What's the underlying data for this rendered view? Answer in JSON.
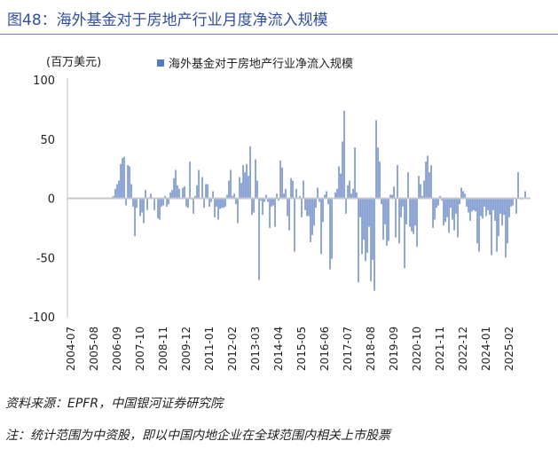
{
  "figure_title": "图48：海外基金对于房地产行业月度净流入规模",
  "source": "资料来源：EPFR，中国银河证券研究院",
  "note": "注：统计范围为中资股，即以中国内地企业在全球范围内相关上市股票",
  "colors": {
    "bar": "#5679c2",
    "title": "#2f4f9e",
    "axis": "#bfbfbf"
  },
  "chart_data": {
    "type": "bar",
    "title": "",
    "ylabel": "(百万美元)",
    "ylim": [
      -100,
      100
    ],
    "yticks": [
      100,
      50,
      0,
      -50,
      -100
    ],
    "grid": false,
    "legend": {
      "placement": "top",
      "entries": [
        "海外基金对于房地产行业净流入规模"
      ]
    },
    "xtick_labels": [
      "2004-07",
      "2005-08",
      "2006-09",
      "2007-10",
      "2008-11",
      "2009-12",
      "2011-01",
      "2012-02",
      "2013-03",
      "2014-04",
      "2015-05",
      "2016-06",
      "2017-07",
      "2018-08",
      "2019-09",
      "2020-10",
      "2021-11",
      "2022-12",
      "2024-01",
      "2025-02"
    ],
    "categories": [
      "2004-07",
      "2004-08",
      "2004-09",
      "2004-10",
      "2004-11",
      "2004-12",
      "2005-01",
      "2005-02",
      "2005-03",
      "2005-04",
      "2005-05",
      "2005-06",
      "2005-07",
      "2005-08",
      "2005-09",
      "2005-10",
      "2005-11",
      "2005-12",
      "2006-01",
      "2006-02",
      "2006-03",
      "2006-04",
      "2006-05",
      "2006-06",
      "2006-07",
      "2006-08",
      "2006-09",
      "2006-10",
      "2006-11",
      "2006-12",
      "2007-01",
      "2007-02",
      "2007-03",
      "2007-04",
      "2007-05",
      "2007-06",
      "2007-07",
      "2007-08",
      "2007-09",
      "2007-10",
      "2007-11",
      "2007-12",
      "2008-01",
      "2008-02",
      "2008-03",
      "2008-04",
      "2008-05",
      "2008-06",
      "2008-07",
      "2008-08",
      "2008-09",
      "2008-10",
      "2008-11",
      "2008-12",
      "2009-01",
      "2009-02",
      "2009-03",
      "2009-04",
      "2009-05",
      "2009-06",
      "2009-07",
      "2009-08",
      "2009-09",
      "2009-10",
      "2009-11",
      "2009-12",
      "2010-01",
      "2010-02",
      "2010-03",
      "2010-04",
      "2010-05",
      "2010-06",
      "2010-07",
      "2010-08",
      "2010-09",
      "2010-10",
      "2010-11",
      "2010-12",
      "2011-01",
      "2011-02",
      "2011-03",
      "2011-04",
      "2011-05",
      "2011-06",
      "2011-07",
      "2011-08",
      "2011-09",
      "2011-10",
      "2011-11",
      "2011-12",
      "2012-01",
      "2012-02",
      "2012-03",
      "2012-04",
      "2012-05",
      "2012-06",
      "2012-07",
      "2012-08",
      "2012-09",
      "2012-10",
      "2012-11",
      "2012-12",
      "2013-01",
      "2013-02",
      "2013-03",
      "2013-04",
      "2013-05",
      "2013-06",
      "2013-07",
      "2013-08",
      "2013-09",
      "2013-10",
      "2013-11",
      "2013-12",
      "2014-01",
      "2014-02",
      "2014-03",
      "2014-04",
      "2014-05",
      "2014-06",
      "2014-07",
      "2014-08",
      "2014-09",
      "2014-10",
      "2014-11",
      "2014-12",
      "2015-01",
      "2015-02",
      "2015-03",
      "2015-04",
      "2015-05",
      "2015-06",
      "2015-07",
      "2015-08",
      "2015-09",
      "2015-10",
      "2015-11",
      "2015-12",
      "2016-01",
      "2016-02",
      "2016-03",
      "2016-04",
      "2016-05",
      "2016-06",
      "2016-07",
      "2016-08",
      "2016-09",
      "2016-10",
      "2016-11",
      "2016-12",
      "2017-01",
      "2017-02",
      "2017-03",
      "2017-04",
      "2017-05",
      "2017-06",
      "2017-07",
      "2017-08",
      "2017-09",
      "2017-10",
      "2017-11",
      "2017-12",
      "2018-01",
      "2018-02",
      "2018-03",
      "2018-04",
      "2018-05",
      "2018-06",
      "2018-07",
      "2018-08",
      "2018-09",
      "2018-10",
      "2018-11",
      "2018-12",
      "2019-01",
      "2019-02",
      "2019-03",
      "2019-04",
      "2019-05",
      "2019-06",
      "2019-07",
      "2019-08",
      "2019-09",
      "2019-10",
      "2019-11",
      "2019-12",
      "2020-01",
      "2020-02",
      "2020-03",
      "2020-04",
      "2020-05",
      "2020-06",
      "2020-07",
      "2020-08",
      "2020-09",
      "2020-10",
      "2020-11",
      "2020-12",
      "2021-01",
      "2021-02",
      "2021-03",
      "2021-04",
      "2021-05",
      "2021-06",
      "2021-07",
      "2021-08",
      "2021-09",
      "2021-10",
      "2021-11",
      "2021-12",
      "2022-01",
      "2022-02",
      "2022-03",
      "2022-04",
      "2022-05",
      "2022-06",
      "2022-07",
      "2022-08",
      "2022-09",
      "2022-10",
      "2022-11",
      "2022-12",
      "2023-01",
      "2023-02",
      "2023-03",
      "2023-04",
      "2023-05",
      "2023-06",
      "2023-07",
      "2023-08",
      "2023-09",
      "2023-10",
      "2023-11",
      "2023-12",
      "2024-01",
      "2024-02",
      "2024-03",
      "2024-04",
      "2024-05",
      "2024-06",
      "2024-07",
      "2024-08",
      "2024-09",
      "2024-10",
      "2024-11",
      "2024-12",
      "2025-01",
      "2025-02",
      "2025-03",
      "2025-04",
      "2025-05",
      "2025-06",
      "2025-07",
      "2025-08",
      "2025-09",
      "2025-10",
      "2025-11"
    ],
    "values": [
      0,
      0,
      0,
      0,
      0,
      0,
      0,
      0,
      0,
      0,
      0,
      0,
      0,
      0,
      0,
      0,
      0,
      0,
      0,
      0,
      0,
      0,
      0,
      1,
      2,
      8,
      12,
      15,
      29,
      34,
      35,
      -6,
      28,
      27,
      12,
      -7,
      -32,
      -8,
      0,
      -15,
      -12,
      -21,
      7,
      -10,
      1,
      4,
      0,
      -10,
      0,
      -17,
      -18,
      -7,
      -6,
      2,
      -7,
      -5,
      5,
      7,
      17,
      24,
      11,
      8,
      0,
      9,
      10,
      -7,
      -8,
      31,
      -1,
      -13,
      2,
      11,
      24,
      0,
      18,
      -8,
      12,
      12,
      -7,
      -3,
      6,
      -16,
      -7,
      -18,
      -9,
      -8,
      -8,
      -7,
      3,
      15,
      24,
      2,
      4,
      -5,
      -21,
      18,
      13,
      28,
      22,
      29,
      19,
      44,
      -14,
      -12,
      33,
      15,
      -69,
      -2,
      -14,
      -3,
      3,
      -3,
      -25,
      -7,
      -6,
      -24,
      4,
      -2,
      32,
      26,
      4,
      8,
      -15,
      -27,
      17,
      15,
      -45,
      8,
      0,
      2,
      -16,
      15,
      -10,
      -15,
      -15,
      -37,
      -31,
      -23,
      -8,
      9,
      -3,
      -47,
      -20,
      3,
      6,
      -5,
      -60,
      -51,
      0,
      5,
      8,
      27,
      21,
      48,
      74,
      -13,
      11,
      15,
      4,
      8,
      43,
      5,
      -71,
      -16,
      -47,
      -35,
      -53,
      -46,
      -24,
      -70,
      -52,
      -78,
      66,
      43,
      31,
      -5,
      -35,
      -22,
      -40,
      -36,
      3,
      3,
      10,
      -33,
      28,
      -38,
      -16,
      -7,
      -59,
      -22,
      22,
      -24,
      -28,
      -30,
      -23,
      -41,
      19,
      12,
      2,
      15,
      31,
      36,
      22,
      28,
      -25,
      -18,
      -8,
      -6,
      2,
      -2,
      -23,
      -20,
      -16,
      -29,
      -8,
      -18,
      -27,
      -13,
      -33,
      -5,
      9,
      6,
      4,
      -7,
      -12,
      -19,
      -11,
      -10,
      -11,
      -38,
      -45,
      -15,
      -17,
      -7,
      -15,
      -10,
      -14,
      -48,
      -10,
      -19,
      -45,
      -32,
      -13,
      -23,
      -14,
      -50,
      -38,
      -16,
      -7,
      -6,
      0,
      -13,
      22,
      0,
      -1,
      0,
      6
    ]
  }
}
